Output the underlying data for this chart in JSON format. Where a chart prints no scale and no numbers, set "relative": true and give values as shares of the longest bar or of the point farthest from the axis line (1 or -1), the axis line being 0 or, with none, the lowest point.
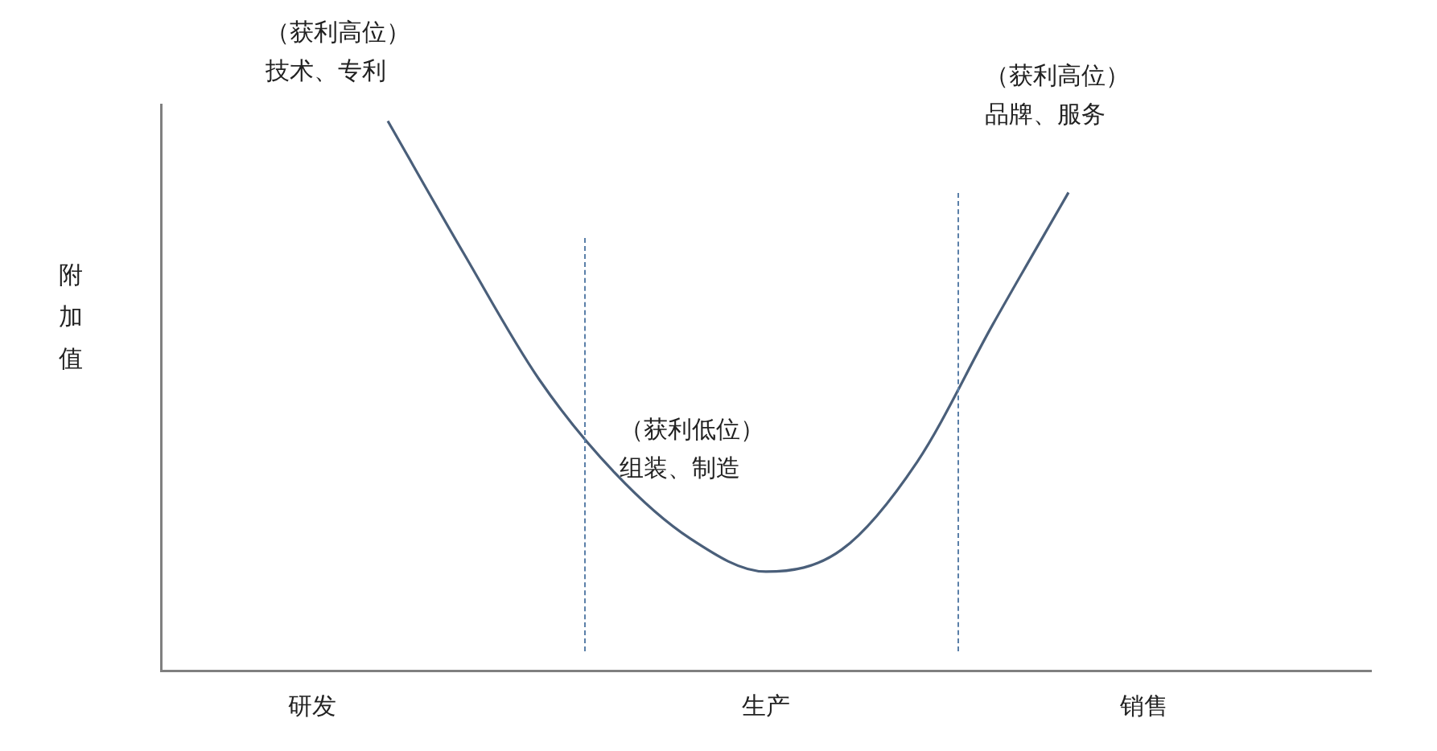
{
  "chart_data": {
    "type": "line",
    "relative": true,
    "ylabel": "附加值",
    "categories": [
      null,
      null,
      "研发",
      null,
      null,
      null,
      null,
      null,
      "生产",
      null,
      null,
      null,
      null,
      "销售",
      null,
      null,
      null
    ],
    "series": [
      {
        "color": "#4a5f7a",
        "values": [
          null,
          null,
          null,
          1,
          0.76,
          0.53,
          0.36,
          0.24,
          0.18,
          0.22,
          0.38,
          0.63,
          0.87,
          null,
          null,
          null,
          null
        ]
      }
    ],
    "annotations": [
      "（获利高位）",
      "技术、专利",
      "（获利低位）",
      "组装、制造",
      "（获利高位）",
      "品牌、服务"
    ],
    "grid": false,
    "legend": false,
    "marker": "none",
    "line_style": "solid"
  }
}
